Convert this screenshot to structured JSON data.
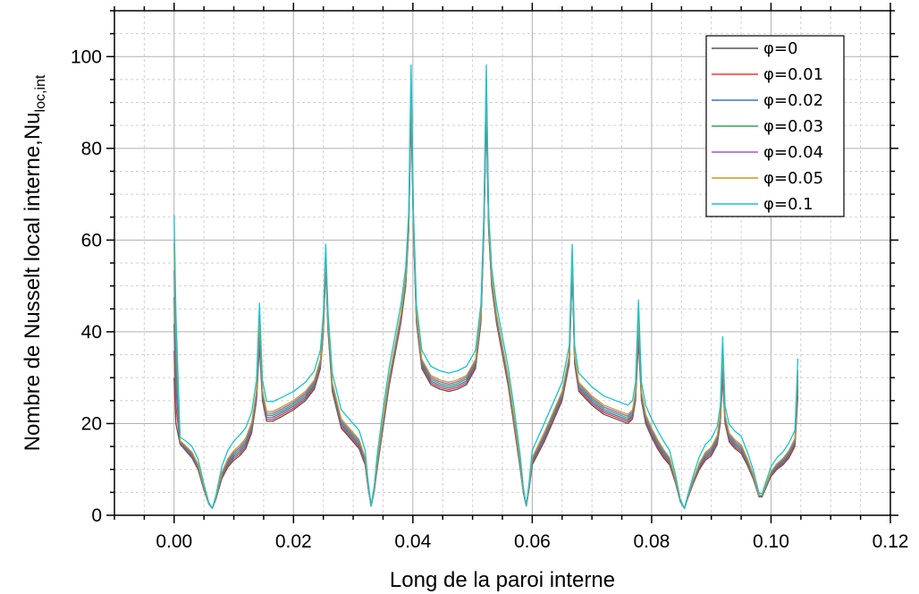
{
  "chart_data": {
    "type": "line",
    "xlabel": "Long de la paroi interne",
    "ylabel_main": "Nombre de Nusselt local interne,Nu",
    "ylabel_sub": "loc,int",
    "xlim": [
      -0.01,
      0.12
    ],
    "ylim": [
      0,
      110
    ],
    "xticks": [
      "0.00",
      "0.02",
      "0.04",
      "0.06",
      "0.08",
      "0.10",
      "0.12"
    ],
    "yticks": [
      "0",
      "20",
      "40",
      "60",
      "80",
      "100"
    ],
    "grid": "major and minor",
    "legend_position": "top-right",
    "x": [
      0.0,
      0.0003,
      0.001,
      0.002,
      0.003,
      0.004,
      0.005,
      0.0058,
      0.0064,
      0.007,
      0.008,
      0.009,
      0.01,
      0.011,
      0.012,
      0.013,
      0.0138,
      0.0143,
      0.0148,
      0.0155,
      0.0165,
      0.018,
      0.02,
      0.022,
      0.0235,
      0.0245,
      0.025,
      0.0254,
      0.0258,
      0.0265,
      0.028,
      0.03,
      0.031,
      0.032,
      0.0325,
      0.033,
      0.0335,
      0.034,
      0.035,
      0.036,
      0.037,
      0.038,
      0.0388,
      0.0393,
      0.0397,
      0.0401,
      0.0406,
      0.0415,
      0.043,
      0.0445,
      0.046,
      0.0475,
      0.049,
      0.0505,
      0.0514,
      0.0519,
      0.0523,
      0.0527,
      0.0532,
      0.054,
      0.055,
      0.056,
      0.057,
      0.058,
      0.0585,
      0.059,
      0.0595,
      0.06,
      0.062,
      0.065,
      0.0662,
      0.0667,
      0.0671,
      0.0678,
      0.07,
      0.072,
      0.074,
      0.076,
      0.0768,
      0.0773,
      0.0778,
      0.0783,
      0.079,
      0.08,
      0.081,
      0.082,
      0.083,
      0.084,
      0.0848,
      0.0855,
      0.086,
      0.087,
      0.088,
      0.089,
      0.09,
      0.091,
      0.0915,
      0.0919,
      0.0923,
      0.093,
      0.094,
      0.095,
      0.096,
      0.097,
      0.098,
      0.0985,
      0.099,
      0.1,
      0.101,
      0.102,
      0.103,
      0.104,
      0.1045
    ],
    "base": [
      30,
      20,
      15.5,
      14,
      12.5,
      10,
      5.5,
      2.5,
      1.5,
      3.5,
      8,
      10.5,
      12,
      13,
      14.5,
      18,
      25,
      37,
      25,
      20.5,
      20.5,
      21.5,
      23,
      25,
      27.5,
      32,
      40,
      54,
      40,
      27,
      19,
      16,
      14.5,
      11,
      6,
      2,
      5,
      10,
      19,
      28,
      35,
      42,
      50,
      62,
      88,
      62,
      42,
      32,
      28.5,
      27.5,
      27,
      27.5,
      28.5,
      32,
      42,
      62,
      88,
      62,
      50,
      42,
      35,
      28,
      19,
      10,
      5,
      2,
      6,
      11,
      16,
      25,
      33,
      54,
      33,
      27,
      24,
      22,
      21,
      20,
      21,
      25,
      38,
      25,
      20,
      17,
      14.5,
      12.5,
      11,
      7,
      3,
      1.5,
      3.5,
      7,
      10,
      12,
      13,
      15.5,
      20,
      30,
      20,
      16,
      14.5,
      13.5,
      11,
      8,
      4,
      4,
      5.5,
      8.5,
      10,
      11,
      12.5,
      15,
      26
    ],
    "series": [
      {
        "name": "φ=0",
        "color": "#555555",
        "delta": [
          0,
          0,
          0,
          0,
          0,
          0,
          0
        ]
      },
      {
        "name": "φ=0.01",
        "color": "#ff3333",
        "delta": [
          0.1,
          0.5,
          0.4,
          0.4,
          0.4,
          0.4,
          0.35
        ]
      },
      {
        "name": "φ=0.02",
        "color": "#3b6fd8",
        "delta": [
          0.2,
          1.0,
          0.8,
          0.8,
          0.8,
          0.8,
          0.7
        ]
      },
      {
        "name": "φ=0.03",
        "color": "#2ea84a",
        "delta": [
          0.3,
          1.5,
          1.2,
          1.2,
          1.2,
          1.2,
          1.05
        ]
      },
      {
        "name": "φ=0.04",
        "color": "#9b59d0",
        "delta": [
          0.4,
          2.0,
          1.6,
          1.6,
          1.6,
          1.6,
          1.4
        ]
      },
      {
        "name": "φ=0.05",
        "color": "#c99a1e",
        "delta": [
          0.5,
          2.5,
          2.0,
          2.0,
          2.0,
          2.0,
          1.75
        ]
      },
      {
        "name": "φ=0.1",
        "color": "#16c4d4",
        "delta": [
          1.0,
          5.0,
          4.0,
          4.0,
          4.0,
          4.0,
          3.5
        ]
      }
    ],
    "peak_shifts": [
      {
        "x": 0.0,
        "factor": 1.15
      },
      {
        "x": 0.0143,
        "factor": 0.13
      },
      {
        "x": 0.0254,
        "factor": 0.02
      },
      {
        "x": 0.0397,
        "factor": 0.07
      },
      {
        "x": 0.0523,
        "factor": 0.07
      },
      {
        "x": 0.0667,
        "factor": 0.02
      },
      {
        "x": 0.0778,
        "factor": 0.13
      },
      {
        "x": 0.0919,
        "factor": 0.17
      },
      {
        "x": 0.1045,
        "factor": 0.18
      }
    ]
  }
}
